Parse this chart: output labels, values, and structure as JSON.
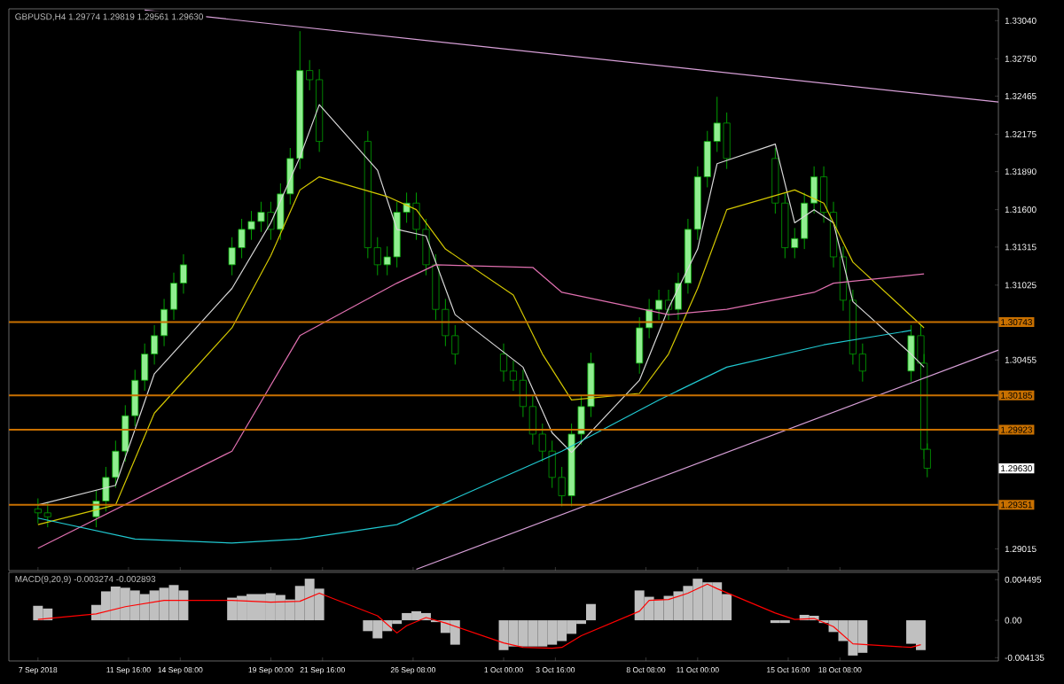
{
  "chart_data": [
    {
      "type": "candlestick",
      "title": "GBPUSD,H4 1.29774 1.29819 1.29561 1.29630",
      "tick_labels": "y",
      "xlim": [
        "2018-09-05T12:00",
        "2018-10-26T12:00"
      ],
      "ylim": [
        1.2885,
        1.3313
      ],
      "xticks": [
        {
          "value": "2018-09-07T00:00",
          "label": null
        },
        {
          "value": "2018-09-11T16:00",
          "label": null
        },
        {
          "value": "2018-09-14T08:00",
          "label": null
        },
        {
          "value": "2018-09-19T00:00",
          "label": null
        },
        {
          "value": "2018-09-21T16:00",
          "label": null
        },
        {
          "value": "2018-09-26T08:00",
          "label": null
        },
        {
          "value": "2018-10-01T00:00",
          "label": null
        },
        {
          "value": "2018-10-03T16:00",
          "label": null
        },
        {
          "value": "2018-10-08T08:00",
          "label": null
        },
        {
          "value": "2018-10-11T00:00",
          "label": null
        },
        {
          "value": "2018-10-15T16:00",
          "label": null
        },
        {
          "value": "2018-10-18T08:00",
          "label": null
        }
      ],
      "yticks": [
        {
          "value": 1.3304,
          "label": "1.33040"
        },
        {
          "value": 1.3275,
          "label": "1.32750"
        },
        {
          "value": 1.32465,
          "label": "1.32465"
        },
        {
          "value": 1.32175,
          "label": "1.32175"
        },
        {
          "value": 1.3189,
          "label": "1.31890"
        },
        {
          "value": 1.316,
          "label": "1.31600"
        },
        {
          "value": 1.31315,
          "label": "1.31315"
        },
        {
          "value": 1.31025,
          "label": "1.31025"
        },
        {
          "value": 1.30455,
          "label": "1.30455"
        },
        {
          "value": 1.29015,
          "label": "1.29015"
        }
      ],
      "color": "#00a000",
      "x": [
        "2018-09-07T00:00",
        "2018-09-07T12:00",
        "2018-09-10T00:00",
        "2018-09-10T12:00",
        "2018-09-11T00:00",
        "2018-09-11T12:00",
        "2018-09-12T00:00",
        "2018-09-12T12:00",
        "2018-09-13T00:00",
        "2018-09-13T12:00",
        "2018-09-14T00:00",
        "2018-09-14T12:00",
        "2018-09-17T00:00",
        "2018-09-17T12:00",
        "2018-09-18T00:00",
        "2018-09-18T12:00",
        "2018-09-19T00:00",
        "2018-09-19T12:00",
        "2018-09-20T00:00",
        "2018-09-20T12:00",
        "2018-09-21T00:00",
        "2018-09-21T12:00",
        "2018-09-24T00:00",
        "2018-09-24T12:00",
        "2018-09-25T00:00",
        "2018-09-25T12:00",
        "2018-09-26T00:00",
        "2018-09-26T12:00",
        "2018-09-27T00:00",
        "2018-09-27T12:00",
        "2018-09-28T00:00",
        "2018-09-28T12:00",
        "2018-10-01T00:00",
        "2018-10-01T12:00",
        "2018-10-02T00:00",
        "2018-10-02T12:00",
        "2018-10-03T00:00",
        "2018-10-03T12:00",
        "2018-10-04T00:00",
        "2018-10-04T12:00",
        "2018-10-05T00:00",
        "2018-10-05T12:00",
        "2018-10-08T00:00",
        "2018-10-08T12:00",
        "2018-10-09T00:00",
        "2018-10-09T12:00",
        "2018-10-10T00:00",
        "2018-10-10T12:00",
        "2018-10-11T00:00",
        "2018-10-11T12:00",
        "2018-10-12T00:00",
        "2018-10-12T12:00",
        "2018-10-15T00:00",
        "2018-10-15T12:00",
        "2018-10-16T00:00",
        "2018-10-16T12:00",
        "2018-10-17T00:00",
        "2018-10-17T12:00",
        "2018-10-18T00:00",
        "2018-10-18T12:00",
        "2018-10-19T00:00",
        "2018-10-19T12:00",
        "2018-10-22T00:00",
        "2018-10-22T12:00",
        "2018-10-22T16:00",
        "2018-10-22T20:00"
      ],
      "ohlc": [
        [
          1.2932,
          1.294,
          1.2921,
          1.2929
        ],
        [
          1.2929,
          1.2937,
          1.2918,
          1.2926
        ],
        [
          1.2926,
          1.2946,
          1.2918,
          1.2938
        ],
        [
          1.2938,
          1.2964,
          1.293,
          1.2956
        ],
        [
          1.2956,
          1.2984,
          1.2948,
          1.2976
        ],
        [
          1.2976,
          1.3011,
          1.2968,
          1.3003
        ],
        [
          1.3003,
          1.3038,
          1.2995,
          1.303
        ],
        [
          1.303,
          1.3058,
          1.3022,
          1.305
        ],
        [
          1.305,
          1.3072,
          1.3042,
          1.3064
        ],
        [
          1.3064,
          1.3092,
          1.3056,
          1.3084
        ],
        [
          1.3084,
          1.3112,
          1.3076,
          1.3104
        ],
        [
          1.3104,
          1.3126,
          1.3096,
          1.3118
        ],
        [
          1.3118,
          1.3139,
          1.311,
          1.3131
        ],
        [
          1.3131,
          1.3153,
          1.3123,
          1.3145
        ],
        [
          1.3145,
          1.3159,
          1.3137,
          1.3151
        ],
        [
          1.3151,
          1.3166,
          1.3143,
          1.3158
        ],
        [
          1.3158,
          1.3166,
          1.3137,
          1.3145
        ],
        [
          1.3145,
          1.318,
          1.3137,
          1.3172
        ],
        [
          1.3172,
          1.3207,
          1.3164,
          1.3199
        ],
        [
          1.3199,
          1.3296,
          1.3191,
          1.3266
        ],
        [
          1.3266,
          1.3274,
          1.3251,
          1.3259
        ],
        [
          1.3259,
          1.3267,
          1.3204,
          1.3212
        ],
        [
          1.3212,
          1.322,
          1.3123,
          1.3131
        ],
        [
          1.3131,
          1.3139,
          1.311,
          1.3118
        ],
        [
          1.3118,
          1.3132,
          1.311,
          1.3124
        ],
        [
          1.3124,
          1.3166,
          1.3116,
          1.3158
        ],
        [
          1.3158,
          1.3173,
          1.315,
          1.3165
        ],
        [
          1.3165,
          1.3173,
          1.3137,
          1.3145
        ],
        [
          1.3145,
          1.3153,
          1.311,
          1.3118
        ],
        [
          1.3118,
          1.3126,
          1.3076,
          1.3084
        ],
        [
          1.3084,
          1.3092,
          1.3056,
          1.3064
        ],
        [
          1.3064,
          1.3072,
          1.3042,
          1.305
        ],
        [
          1.305,
          1.3058,
          1.3029,
          1.3037
        ],
        [
          1.3037,
          1.3045,
          1.3022,
          1.303
        ],
        [
          1.303,
          1.3038,
          1.3002,
          1.301
        ],
        [
          1.301,
          1.3018,
          1.2981,
          1.2989
        ],
        [
          1.2989,
          1.2997,
          1.2968,
          1.2976
        ],
        [
          1.2976,
          1.2984,
          1.2948,
          1.2956
        ],
        [
          1.2956,
          1.2964,
          1.2934,
          1.2942
        ],
        [
          1.2942,
          1.2997,
          1.2934,
          1.2989
        ],
        [
          1.2989,
          1.3018,
          1.2981,
          1.301
        ],
        [
          1.301,
          1.3051,
          1.3002,
          1.3043
        ],
        [
          1.3043,
          1.3078,
          1.3035,
          1.307
        ],
        [
          1.307,
          1.3092,
          1.3062,
          1.3084
        ],
        [
          1.3084,
          1.3099,
          1.3076,
          1.3091
        ],
        [
          1.3091,
          1.3099,
          1.3076,
          1.3084
        ],
        [
          1.3084,
          1.3112,
          1.3076,
          1.3104
        ],
        [
          1.3104,
          1.3153,
          1.3096,
          1.3145
        ],
        [
          1.3145,
          1.3193,
          1.3137,
          1.3185
        ],
        [
          1.3185,
          1.322,
          1.3177,
          1.3212
        ],
        [
          1.3212,
          1.3246,
          1.3204,
          1.3226
        ],
        [
          1.3226,
          1.3234,
          1.3191,
          1.3199
        ],
        [
          1.3199,
          1.3207,
          1.3157,
          1.3165
        ],
        [
          1.3165,
          1.3173,
          1.3123,
          1.3131
        ],
        [
          1.3131,
          1.3146,
          1.3123,
          1.3138
        ],
        [
          1.3138,
          1.3173,
          1.313,
          1.3165
        ],
        [
          1.3165,
          1.3193,
          1.3157,
          1.3185
        ],
        [
          1.3185,
          1.3193,
          1.315,
          1.3158
        ],
        [
          1.3158,
          1.3166,
          1.3116,
          1.3124
        ],
        [
          1.3124,
          1.3132,
          1.3083,
          1.3091
        ],
        [
          1.3091,
          1.3099,
          1.3042,
          1.305
        ],
        [
          1.305,
          1.3058,
          1.3029,
          1.3037
        ],
        [
          1.3037,
          1.3072,
          1.3029,
          1.3064
        ],
        [
          1.3064,
          1.3072,
          1.3035,
          1.3043
        ],
        [
          1.3043,
          1.305,
          1.297,
          1.29774
        ],
        [
          1.29774,
          1.29819,
          1.29561,
          1.2963
        ]
      ],
      "series": [
        {
          "type": "line",
          "color": "#d8d8d8",
          "x": [
            "2018-09-07T00:00",
            "2018-09-11T00:00",
            "2018-09-13T00:00",
            "2018-09-17T00:00",
            "2018-09-19T00:00",
            "2018-09-20T12:00",
            "2018-09-21T12:00",
            "2018-09-24T12:00",
            "2018-09-25T12:00",
            "2018-09-27T00:00",
            "2018-09-28T12:00",
            "2018-10-02T00:00",
            "2018-10-03T12:00",
            "2018-10-04T12:00",
            "2018-10-08T00:00",
            "2018-10-09T12:00",
            "2018-10-11T00:00",
            "2018-10-12T00:00",
            "2018-10-15T00:00",
            "2018-10-16T00:00",
            "2018-10-17T00:00",
            "2018-10-18T00:00",
            "2018-10-19T00:00",
            "2018-10-22T00:00",
            "2018-10-22T16:00"
          ],
          "values": [
            1.2935,
            1.295,
            1.3035,
            1.31,
            1.315,
            1.32,
            1.324,
            1.319,
            1.3145,
            1.314,
            1.308,
            1.304,
            1.299,
            1.2975,
            1.303,
            1.3085,
            1.313,
            1.3195,
            1.321,
            1.315,
            1.316,
            1.315,
            1.309,
            1.305,
            1.304
          ]
        },
        {
          "type": "line",
          "color": "#d4c800",
          "x": [
            "2018-09-07T00:00",
            "2018-09-11T00:00",
            "2018-09-13T00:00",
            "2018-09-17T00:00",
            "2018-09-19T00:00",
            "2018-09-20T12:00",
            "2018-09-21T12:00",
            "2018-09-25T00:00",
            "2018-09-26T12:00",
            "2018-09-28T00:00",
            "2018-10-01T12:00",
            "2018-10-03T00:00",
            "2018-10-04T12:00",
            "2018-10-08T00:00",
            "2018-10-09T12:00",
            "2018-10-11T00:00",
            "2018-10-12T12:00",
            "2018-10-16T00:00",
            "2018-10-17T12:00",
            "2018-10-19T00:00",
            "2018-10-22T16:00"
          ],
          "values": [
            1.292,
            1.2935,
            1.3005,
            1.307,
            1.3125,
            1.3175,
            1.3185,
            1.317,
            1.316,
            1.313,
            1.3095,
            1.305,
            1.3015,
            1.302,
            1.305,
            1.31,
            1.316,
            1.3175,
            1.3165,
            1.312,
            1.307
          ]
        },
        {
          "type": "line",
          "color": "#e070b0",
          "x": [
            "2018-09-07T00:00",
            "2018-09-17T00:00",
            "2018-09-20T12:00",
            "2018-09-25T12:00",
            "2018-09-27T12:00",
            "2018-10-02T12:00",
            "2018-10-04T00:00",
            "2018-10-09T12:00",
            "2018-10-12T12:00",
            "2018-10-17T00:00",
            "2018-10-18T00:00",
            "2018-10-22T16:00"
          ],
          "values": [
            1.2902,
            1.2976,
            1.3064,
            1.3104,
            1.3118,
            1.3116,
            1.3097,
            1.308,
            1.3084,
            1.3097,
            1.3104,
            1.3111
          ]
        },
        {
          "type": "line",
          "color": "#20c8d0",
          "x": [
            "2018-09-07T00:00",
            "2018-09-12T00:00",
            "2018-09-17T00:00",
            "2018-09-20T12:00",
            "2018-09-25T12:00",
            "2018-09-28T12:00",
            "2018-10-04T00:00",
            "2018-10-09T00:00",
            "2018-10-12T12:00",
            "2018-10-17T12:00",
            "2018-10-22T00:00"
          ],
          "values": [
            1.2925,
            1.2909,
            1.2906,
            1.2909,
            1.292,
            1.294,
            1.2976,
            1.3015,
            1.304,
            1.3057,
            1.3068
          ]
        },
        {
          "type": "line",
          "color": "#d8a0d8",
          "x": [
            "2018-09-12T12:00",
            "2018-10-26T12:00"
          ],
          "values": [
            1.3312,
            1.3242
          ]
        },
        {
          "type": "line",
          "color": "#d8a0d8",
          "x": [
            "2018-09-26T12:00",
            "2018-10-26T12:00"
          ],
          "values": [
            1.2886,
            1.3053
          ]
        }
      ],
      "ref_lines": [
        {
          "axis": "y",
          "value": 1.30743,
          "label": "1.30743",
          "color": "#c87000"
        },
        {
          "axis": "y",
          "value": 1.30185,
          "label": "1.30185",
          "color": "#c87000"
        },
        {
          "axis": "y",
          "value": 1.29923,
          "label": "1.29923",
          "color": "#c87000"
        },
        {
          "axis": "y",
          "value": 1.29351,
          "label": "1.29351",
          "color": "#c87000"
        }
      ],
      "annotations": [
        "1.29630"
      ]
    },
    {
      "type": "bar",
      "title": "MACD(9,20,9) -0.003274 -0.002893",
      "xlim": [
        "2018-09-05T12:00",
        "2018-10-26T12:00"
      ],
      "ylim": [
        -0.0045,
        0.0053
      ],
      "xticks": [
        {
          "value": "2018-09-07T00:00",
          "label": "7 Sep 2018"
        },
        {
          "value": "2018-09-11T16:00",
          "label": "11 Sep 16:00"
        },
        {
          "value": "2018-09-14T08:00",
          "label": "14 Sep 08:00"
        },
        {
          "value": "2018-09-19T00:00",
          "label": "19 Sep 00:00"
        },
        {
          "value": "2018-09-21T16:00",
          "label": "21 Sep 16:00"
        },
        {
          "value": "2018-09-26T08:00",
          "label": "26 Sep 08:00"
        },
        {
          "value": "2018-10-01T00:00",
          "label": "1 Oct 00:00"
        },
        {
          "value": "2018-10-03T16:00",
          "label": "3 Oct 16:00"
        },
        {
          "value": "2018-10-08T08:00",
          "label": "8 Oct 08:00"
        },
        {
          "value": "2018-10-11T00:00",
          "label": "11 Oct 00:00"
        },
        {
          "value": "2018-10-15T16:00",
          "label": "15 Oct 16:00"
        },
        {
          "value": "2018-10-18T08:00",
          "label": "18 Oct 08:00"
        }
      ],
      "yticks": [
        {
          "value": 0.004495,
          "label": "0.004495"
        },
        {
          "value": 0,
          "label": "0.00"
        },
        {
          "value": -0.004135,
          "label": "-0.004135"
        }
      ],
      "series": [
        {
          "type": "bar",
          "color": "#c0c0c0",
          "x": [
            "2018-09-07T00:00",
            "2018-09-07T12:00",
            "2018-09-10T00:00",
            "2018-09-10T12:00",
            "2018-09-11T00:00",
            "2018-09-11T12:00",
            "2018-09-12T00:00",
            "2018-09-12T12:00",
            "2018-09-13T00:00",
            "2018-09-13T12:00",
            "2018-09-14T00:00",
            "2018-09-14T12:00",
            "2018-09-17T00:00",
            "2018-09-17T12:00",
            "2018-09-18T00:00",
            "2018-09-18T12:00",
            "2018-09-19T00:00",
            "2018-09-19T12:00",
            "2018-09-20T00:00",
            "2018-09-20T12:00",
            "2018-09-21T00:00",
            "2018-09-21T12:00",
            "2018-09-24T00:00",
            "2018-09-24T12:00",
            "2018-09-25T00:00",
            "2018-09-25T12:00",
            "2018-09-26T00:00",
            "2018-09-26T12:00",
            "2018-09-27T00:00",
            "2018-09-27T12:00",
            "2018-09-28T00:00",
            "2018-09-28T12:00",
            "2018-10-01T00:00",
            "2018-10-01T12:00",
            "2018-10-02T00:00",
            "2018-10-02T12:00",
            "2018-10-03T00:00",
            "2018-10-03T12:00",
            "2018-10-04T00:00",
            "2018-10-04T12:00",
            "2018-10-05T00:00",
            "2018-10-05T12:00",
            "2018-10-08T00:00",
            "2018-10-08T12:00",
            "2018-10-09T00:00",
            "2018-10-09T12:00",
            "2018-10-10T00:00",
            "2018-10-10T12:00",
            "2018-10-11T00:00",
            "2018-10-11T12:00",
            "2018-10-12T00:00",
            "2018-10-12T12:00",
            "2018-10-15T00:00",
            "2018-10-15T12:00",
            "2018-10-16T00:00",
            "2018-10-16T12:00",
            "2018-10-17T00:00",
            "2018-10-17T12:00",
            "2018-10-18T00:00",
            "2018-10-18T12:00",
            "2018-10-19T00:00",
            "2018-10-19T12:00",
            "2018-10-22T00:00",
            "2018-10-22T12:00"
          ],
          "values": [
            0.0016,
            0.0013,
            0.0017,
            0.0032,
            0.004,
            0.0036,
            0.0033,
            0.0029,
            0.0033,
            0.0036,
            0.0039,
            0.0033,
            0.0025,
            0.0027,
            0.0029,
            0.0029,
            0.003,
            0.0028,
            0.0023,
            0.0038,
            0.0046,
            0.0035,
            -0.0012,
            -0.002,
            -0.0012,
            -0.0004,
            0.0008,
            0.001,
            0.0008,
            -0.0002,
            -0.0014,
            -0.0027,
            -0.0033,
            -0.0029,
            -0.0029,
            -0.0029,
            -0.0029,
            -0.0027,
            -0.0023,
            -0.0015,
            -0.0004,
            0.0018,
            0.0033,
            0.0026,
            0.0023,
            0.0027,
            0.0032,
            0.0038,
            0.0046,
            0.0042,
            0.0042,
            0.0029,
            -0.0003,
            -0.0003,
            0.0,
            0.0006,
            0.0005,
            -0.0003,
            -0.0013,
            -0.0023,
            -0.0039,
            -0.0036,
            -0.0026,
            -0.0033
          ]
        },
        {
          "type": "line",
          "color": "#ff0000",
          "x": [
            "2018-09-07T00:00",
            "2018-09-10T00:00",
            "2018-09-11T12:00",
            "2018-09-13T12:00",
            "2018-09-17T00:00",
            "2018-09-19T00:00",
            "2018-09-20T12:00",
            "2018-09-21T12:00",
            "2018-09-24T12:00",
            "2018-09-25T12:00",
            "2018-09-26T00:00",
            "2018-09-27T00:00",
            "2018-09-28T00:00",
            "2018-10-01T00:00",
            "2018-10-02T00:00",
            "2018-10-03T12:00",
            "2018-10-04T00:00",
            "2018-10-05T00:00",
            "2018-10-08T00:00",
            "2018-10-08T12:00",
            "2018-10-09T12:00",
            "2018-10-10T12:00",
            "2018-10-11T12:00",
            "2018-10-12T00:00",
            "2018-10-15T00:00",
            "2018-10-16T00:00",
            "2018-10-17T00:00",
            "2018-10-18T00:00",
            "2018-10-19T00:00",
            "2018-10-22T00:00",
            "2018-10-22T12:00"
          ],
          "values": [
            0.0001,
            0.0007,
            0.0015,
            0.0022,
            0.0022,
            0.002,
            0.0021,
            0.003,
            0.0005,
            -0.0014,
            -0.0006,
            0.0003,
            -0.0003,
            -0.0025,
            -0.003,
            -0.0031,
            -0.003,
            -0.0017,
            0.001,
            0.0022,
            0.0023,
            0.003,
            0.004,
            0.0035,
            0.0008,
            0.0001,
            0.0002,
            -0.0007,
            -0.0026,
            -0.003,
            -0.0027
          ]
        }
      ]
    }
  ]
}
